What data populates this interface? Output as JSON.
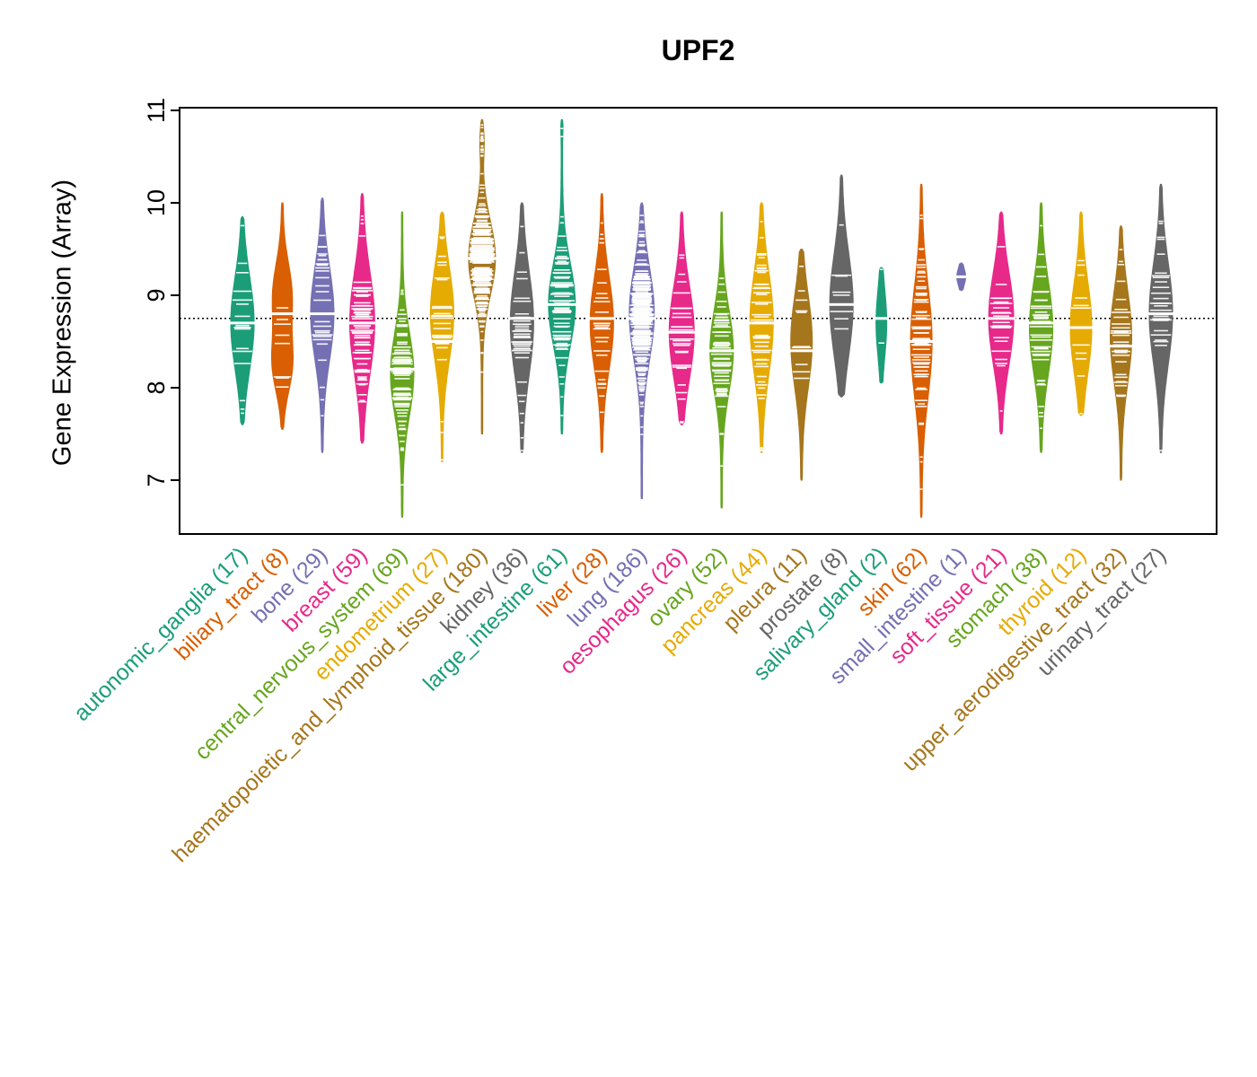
{
  "title": "UPF2",
  "y_axis": {
    "label": "Gene Expression (Array)",
    "ticks": [
      7,
      8,
      9,
      10,
      11
    ]
  },
  "chart_data": {
    "type": "violin",
    "title": "UPF2",
    "ylabel": "Gene Expression (Array)",
    "ylim": [
      6.4,
      11.05
    ],
    "yticks": [
      7,
      8,
      9,
      10,
      11
    ],
    "reference_line": 8.75,
    "grid": false,
    "legend": "none",
    "groups": [
      {
        "label": "autonomic_ganglia",
        "n": 17,
        "color": "#1B9E77",
        "min": 7.6,
        "max": 9.85,
        "median": 8.7,
        "relwidth": 0.87,
        "comps": [
          {
            "m": 8.7,
            "s": 0.5,
            "f": 1
          }
        ]
      },
      {
        "label": "biliary_tract",
        "n": 8,
        "color": "#D95F02",
        "min": 7.55,
        "max": 10.0,
        "median": 8.8,
        "relwidth": 0.8,
        "comps": [
          {
            "m": 8.25,
            "s": 0.3,
            "f": 0.5
          },
          {
            "m": 9.0,
            "s": 0.35,
            "f": 0.5
          }
        ]
      },
      {
        "label": "bone",
        "n": 29,
        "color": "#7570B3",
        "min": 7.3,
        "max": 10.05,
        "median": 8.8,
        "relwidth": 0.87,
        "comps": [
          {
            "m": 8.8,
            "s": 0.5,
            "f": 1
          }
        ]
      },
      {
        "label": "breast",
        "n": 59,
        "color": "#E7298A",
        "min": 7.4,
        "max": 10.1,
        "median": 8.7,
        "relwidth": 0.93,
        "comps": [
          {
            "m": 8.7,
            "s": 0.55,
            "f": 1
          }
        ]
      },
      {
        "label": "central_nervous_system",
        "n": 69,
        "color": "#66A61E",
        "min": 6.6,
        "max": 9.9,
        "median": 8.2,
        "relwidth": 0.87,
        "comps": [
          {
            "m": 8.15,
            "s": 0.45,
            "f": 1
          }
        ]
      },
      {
        "label": "endometrium",
        "n": 27,
        "color": "#E6AB02",
        "min": 7.2,
        "max": 9.9,
        "median": 8.5,
        "relwidth": 0.87,
        "comps": [
          {
            "m": 8.8,
            "s": 0.5,
            "f": 1
          }
        ]
      },
      {
        "label": "haematopoietic_and_lymphoid_tissue",
        "n": 180,
        "color": "#A6761D",
        "min": 7.5,
        "max": 10.9,
        "median": 9.4,
        "relwidth": 1.0,
        "comps": [
          {
            "m": 9.4,
            "s": 0.4,
            "f": 0.9
          },
          {
            "m": 10.65,
            "s": 0.15,
            "f": 0.1
          }
        ]
      },
      {
        "label": "kidney",
        "n": 36,
        "color": "#666666",
        "min": 7.3,
        "max": 10.0,
        "median": 8.75,
        "relwidth": 0.87,
        "comps": [
          {
            "m": 8.7,
            "s": 0.55,
            "f": 1
          }
        ]
      },
      {
        "label": "large_intestine",
        "n": 61,
        "color": "#1B9E77",
        "min": 7.5,
        "max": 10.9,
        "median": 8.9,
        "relwidth": 1.0,
        "comps": [
          {
            "m": 8.9,
            "s": 0.45,
            "f": 0.97
          },
          {
            "m": 10.8,
            "s": 0.08,
            "f": 0.03
          }
        ]
      },
      {
        "label": "liver",
        "n": 28,
        "color": "#D95F02",
        "min": 7.3,
        "max": 10.1,
        "median": 8.75,
        "relwidth": 0.87,
        "comps": [
          {
            "m": 8.7,
            "s": 0.5,
            "f": 1
          }
        ]
      },
      {
        "label": "lung",
        "n": 186,
        "color": "#7570B3",
        "min": 6.8,
        "max": 10.0,
        "median": 8.75,
        "relwidth": 0.93,
        "comps": [
          {
            "m": 8.8,
            "s": 0.5,
            "f": 1
          }
        ]
      },
      {
        "label": "oesophagus",
        "n": 26,
        "color": "#E7298A",
        "min": 7.6,
        "max": 9.9,
        "median": 8.6,
        "relwidth": 0.93,
        "comps": [
          {
            "m": 8.6,
            "s": 0.5,
            "f": 1
          }
        ]
      },
      {
        "label": "ovary",
        "n": 52,
        "color": "#66A61E",
        "min": 6.7,
        "max": 9.9,
        "median": 8.4,
        "relwidth": 0.87,
        "comps": [
          {
            "m": 8.4,
            "s": 0.45,
            "f": 1
          }
        ]
      },
      {
        "label": "pancreas",
        "n": 44,
        "color": "#E6AB02",
        "min": 7.3,
        "max": 10.0,
        "median": 8.7,
        "relwidth": 0.87,
        "comps": [
          {
            "m": 8.7,
            "s": 0.55,
            "f": 1
          }
        ]
      },
      {
        "label": "pleura",
        "n": 11,
        "color": "#A6761D",
        "min": 7.0,
        "max": 9.5,
        "median": 8.4,
        "relwidth": 0.8,
        "comps": [
          {
            "m": 8.5,
            "s": 0.5,
            "f": 1
          }
        ]
      },
      {
        "label": "prostate",
        "n": 8,
        "color": "#666666",
        "min": 7.9,
        "max": 10.3,
        "median": 8.9,
        "relwidth": 0.87,
        "comps": [
          {
            "m": 8.9,
            "s": 0.55,
            "f": 1
          }
        ]
      },
      {
        "label": "salivary_gland",
        "n": 2,
        "color": "#1B9E77",
        "min": 8.05,
        "max": 9.3,
        "median": 8.75,
        "relwidth": 0.4,
        "comps": [
          {
            "m": 8.7,
            "s": 0.35,
            "f": 1
          }
        ]
      },
      {
        "label": "skin",
        "n": 62,
        "color": "#D95F02",
        "min": 6.6,
        "max": 10.2,
        "median": 8.5,
        "relwidth": 0.8,
        "comps": [
          {
            "m": 8.5,
            "s": 0.6,
            "f": 1
          }
        ]
      },
      {
        "label": "small_intestine",
        "n": 1,
        "color": "#7570B3",
        "min": 9.05,
        "max": 9.35,
        "median": 9.2,
        "relwidth": 0.33,
        "comps": [
          {
            "m": 9.2,
            "s": 0.09,
            "f": 1
          }
        ]
      },
      {
        "label": "soft_tissue",
        "n": 21,
        "color": "#E7298A",
        "min": 7.5,
        "max": 9.9,
        "median": 8.75,
        "relwidth": 0.93,
        "comps": [
          {
            "m": 8.75,
            "s": 0.5,
            "f": 1
          }
        ]
      },
      {
        "label": "stomach",
        "n": 38,
        "color": "#66A61E",
        "min": 7.3,
        "max": 10.0,
        "median": 8.7,
        "relwidth": 0.87,
        "comps": [
          {
            "m": 8.65,
            "s": 0.5,
            "f": 1
          }
        ]
      },
      {
        "label": "thyroid",
        "n": 12,
        "color": "#E6AB02",
        "min": 7.7,
        "max": 9.9,
        "median": 8.65,
        "relwidth": 0.8,
        "comps": [
          {
            "m": 8.65,
            "s": 0.5,
            "f": 1
          }
        ]
      },
      {
        "label": "upper_aerodigestive_tract",
        "n": 32,
        "color": "#A6761D",
        "min": 7.0,
        "max": 9.75,
        "median": 8.45,
        "relwidth": 0.8,
        "comps": [
          {
            "m": 8.55,
            "s": 0.5,
            "f": 1
          }
        ]
      },
      {
        "label": "urinary_tract",
        "n": 27,
        "color": "#666666",
        "min": 7.3,
        "max": 10.2,
        "median": 8.8,
        "relwidth": 0.87,
        "comps": [
          {
            "m": 8.8,
            "s": 0.55,
            "f": 1
          }
        ]
      }
    ]
  }
}
